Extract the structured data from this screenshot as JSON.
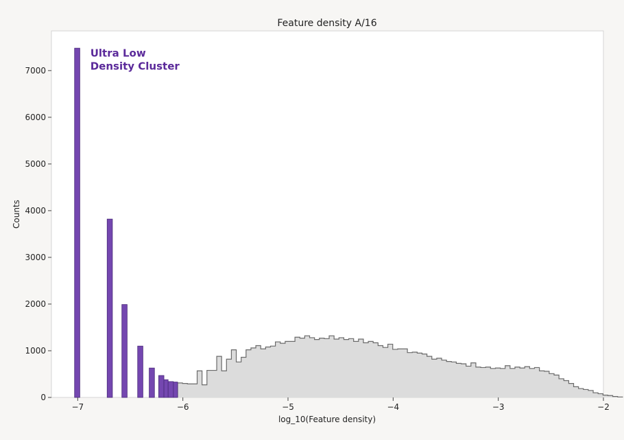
{
  "chart_data": {
    "type": "bar",
    "title": "Feature density A/16",
    "xlabel": "log_10(Feature density)",
    "ylabel": "Counts",
    "xlim": [
      -7.25,
      -2.0
    ],
    "ylim": [
      0,
      7850
    ],
    "xticks": [
      -7,
      -6,
      -5,
      -4,
      -3,
      -2
    ],
    "xtick_labels": [
      "−7",
      "−6",
      "−5",
      "−4",
      "−3",
      "−2"
    ],
    "yticks": [
      0,
      1000,
      2000,
      3000,
      4000,
      5000,
      6000,
      7000
    ],
    "ytick_labels": [
      "0",
      "1000",
      "2000",
      "3000",
      "4000",
      "5000",
      "6000",
      "7000"
    ],
    "grid": false,
    "annotation": {
      "lines": [
        "Ultra Low",
        "Density Cluster"
      ],
      "color": "#5b2a9a",
      "x": -6.88,
      "y": 7300
    },
    "colors": {
      "cluster_fill": "#7447b0",
      "cluster_edge": "#4a2a7a",
      "hist_fill": "#dcdcdc",
      "hist_edge": "#6a6a6a",
      "background": "#f7f6f4",
      "plot_area": "#ffffff"
    },
    "series": [
      {
        "name": "Ultra Low Density Cluster",
        "style": "bars",
        "bars": [
          {
            "x0": -7.03,
            "x1": -6.98,
            "value": 7480
          },
          {
            "x0": -6.72,
            "x1": -6.67,
            "value": 3820
          },
          {
            "x0": -6.58,
            "x1": -6.53,
            "value": 1990
          },
          {
            "x0": -6.43,
            "x1": -6.38,
            "value": 1100
          },
          {
            "x0": -6.32,
            "x1": -6.27,
            "value": 630
          },
          {
            "x0": -6.23,
            "x1": -6.18,
            "value": 470
          },
          {
            "x0": -6.18,
            "x1": -6.14,
            "value": 380
          },
          {
            "x0": -6.14,
            "x1": -6.09,
            "value": 340
          },
          {
            "x0": -6.09,
            "x1": -6.05,
            "value": 330
          }
        ]
      },
      {
        "name": "Feature density",
        "style": "step",
        "bin_width": 0.0465,
        "bins_start": -6.05,
        "values": [
          310,
          300,
          290,
          290,
          570,
          270,
          580,
          580,
          880,
          570,
          820,
          1020,
          760,
          860,
          1020,
          1060,
          1110,
          1040,
          1080,
          1100,
          1190,
          1160,
          1200,
          1200,
          1290,
          1270,
          1320,
          1280,
          1240,
          1270,
          1260,
          1320,
          1250,
          1280,
          1240,
          1260,
          1200,
          1250,
          1170,
          1200,
          1170,
          1110,
          1070,
          1140,
          1030,
          1040,
          1040,
          960,
          970,
          950,
          930,
          880,
          820,
          840,
          800,
          770,
          760,
          730,
          720,
          670,
          740,
          650,
          640,
          650,
          620,
          630,
          620,
          680,
          620,
          650,
          630,
          660,
          620,
          640,
          570,
          560,
          510,
          480,
          400,
          360,
          300,
          230,
          190,
          170,
          150,
          100,
          80,
          50,
          40,
          20,
          10
        ]
      }
    ]
  }
}
